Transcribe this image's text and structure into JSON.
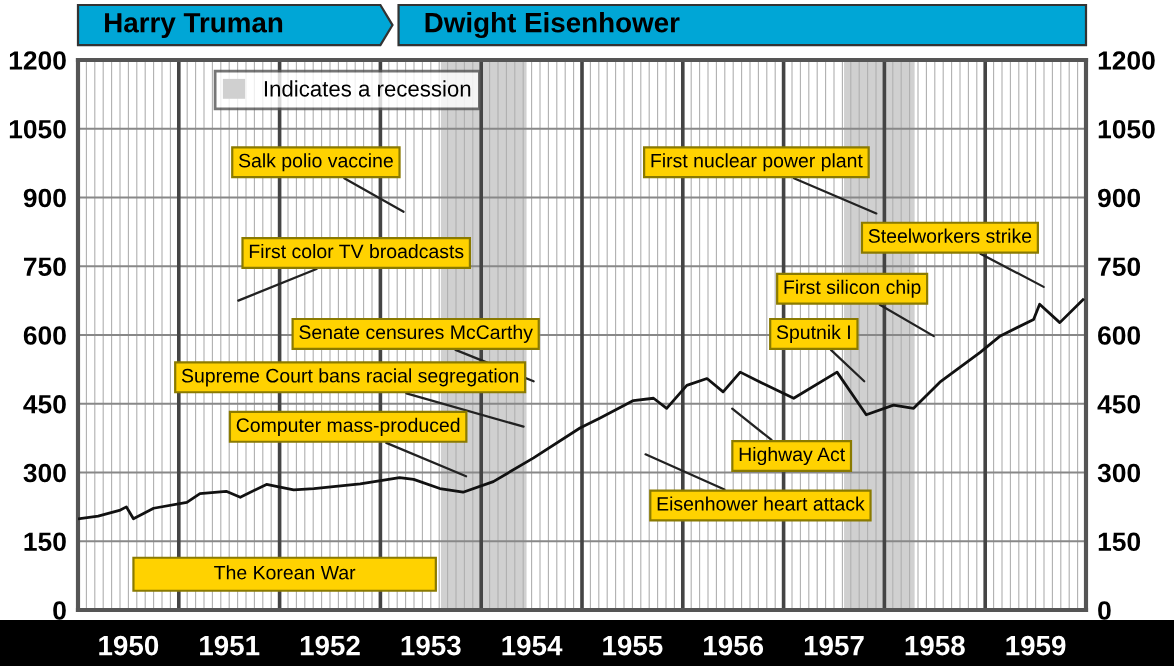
{
  "chart_data": {
    "type": "line",
    "x": [
      1950.0,
      1950.2,
      1950.42,
      1950.48,
      1950.55,
      1950.75,
      1951.08,
      1951.21,
      1951.47,
      1951.61,
      1951.87,
      1952.14,
      1952.34,
      1952.8,
      1953.19,
      1953.33,
      1953.59,
      1953.82,
      1954.12,
      1954.52,
      1954.98,
      1955.18,
      1955.51,
      1955.71,
      1955.84,
      1956.04,
      1956.24,
      1956.4,
      1956.57,
      1956.77,
      1957.1,
      1957.53,
      1957.82,
      1958.09,
      1958.29,
      1958.55,
      1958.95,
      1959.15,
      1959.48,
      1959.54,
      1959.74,
      1959.97
    ],
    "series": [
      {
        "color": "#111111",
        "values": [
          199,
          205,
          218,
          225,
          199,
          222,
          235,
          254,
          259,
          246,
          274,
          262,
          265,
          275,
          289,
          285,
          265,
          257,
          280,
          332,
          397,
          419,
          457,
          462,
          440,
          490,
          505,
          476,
          519,
          497,
          462,
          519,
          426,
          447,
          440,
          497,
          562,
          598,
          634,
          667,
          627,
          677
        ]
      }
    ],
    "xlim": [
      1950,
      1960
    ],
    "xticks": [
      {
        "value": 1950.5,
        "label": "1950"
      },
      {
        "value": 1951.5,
        "label": "1951"
      },
      {
        "value": 1952.5,
        "label": "1952"
      },
      {
        "value": 1953.5,
        "label": "1953"
      },
      {
        "value": 1954.5,
        "label": "1954"
      },
      {
        "value": 1955.5,
        "label": "1955"
      },
      {
        "value": 1956.5,
        "label": "1956"
      },
      {
        "value": 1957.5,
        "label": "1957"
      },
      {
        "value": 1958.5,
        "label": "1958"
      },
      {
        "value": 1959.5,
        "label": "1959"
      }
    ],
    "ylim": [
      0,
      1200
    ],
    "yticks": [
      0,
      150,
      300,
      450,
      600,
      750,
      900,
      1050,
      1200
    ],
    "y2lim": [
      0,
      1200
    ],
    "y2ticks": [
      0,
      150,
      300,
      450,
      600,
      750,
      900,
      1050,
      1200
    ],
    "grid": true,
    "legend": "top left",
    "bands": [
      {
        "axis": "x",
        "from": 1953.6,
        "to": 1954.45,
        "label": "Indicates a recession",
        "color": "#d0d0d0"
      },
      {
        "axis": "x",
        "from": 1957.6,
        "to": 1958.3,
        "color": "#d0d0d0"
      },
      {
        "axis": "x",
        "from": 1950.55,
        "to": 1953.55,
        "label": "The Korean War",
        "color": "#ffd200"
      }
    ],
    "annotations": [
      "Harry Truman",
      "Dwight Eisenhower",
      "Salk polio vaccine",
      "First color TV broadcasts",
      {
        "text": "Senate censures McCarthy",
        "x": 1954.52,
        "y": 499
      },
      {
        "text": "Supreme Court bans racial segregation",
        "x": 1954.42,
        "y": 400
      },
      "Computer mass-produced",
      "First nuclear power plant",
      "Steelworkers strike",
      "First silicon chip",
      "Sputnik I",
      "Highway Act",
      "Eisenhower heart attack"
    ]
  }
}
